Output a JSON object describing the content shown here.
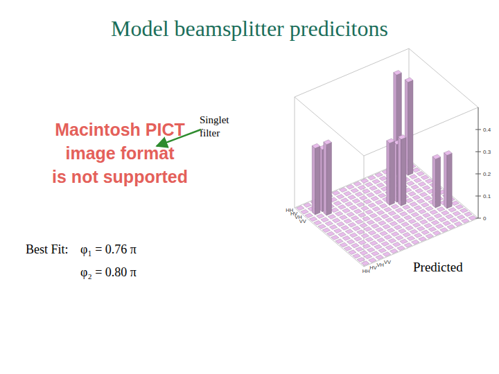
{
  "chart_data": {
    "type": "bar3d",
    "title": "Model beamsplitter predicitons",
    "placeholder": [
      "Macintosh PICT",
      "image format",
      "is not supported"
    ],
    "callout": [
      "Singlet",
      "filter"
    ],
    "fit_label": "Best Fit:",
    "fit": [
      "φ₁ = 0.76 π",
      "φ₂ = 0.80 π"
    ],
    "caption": "Predicted",
    "color": "#c9a3cc",
    "rows": [
      "HH",
      "HV",
      "VH",
      "VV",
      null,
      null,
      null,
      null,
      null,
      null,
      null,
      null,
      null,
      null,
      null,
      null
    ],
    "columns": [
      "HH",
      "HV",
      "VH",
      "VV",
      null,
      null,
      null,
      null,
      null,
      null,
      null,
      null,
      null,
      null,
      null,
      null
    ],
    "zlim": [
      0,
      0.5
    ],
    "zticks": [
      0,
      0.1,
      0.2,
      0.3,
      0.4
    ],
    "values": [
      [
        0,
        0,
        0,
        0,
        0,
        0,
        0,
        0,
        0,
        0,
        0,
        0,
        0,
        0,
        0,
        0
      ],
      [
        0,
        0,
        0,
        0,
        0,
        0,
        0,
        0,
        0,
        0,
        0,
        0,
        0,
        0.45,
        0,
        0
      ],
      [
        0,
        0.3,
        0.28,
        0,
        0,
        0,
        0,
        0,
        0,
        0,
        0,
        0,
        0,
        0,
        0.42,
        0
      ],
      [
        0,
        0,
        0.32,
        0,
        0,
        0,
        0,
        0,
        0,
        0,
        0,
        0,
        0,
        0,
        0,
        0
      ],
      [
        0,
        0,
        0,
        0,
        0,
        0,
        0,
        0,
        0,
        0,
        0,
        0,
        0,
        0,
        0,
        0
      ],
      [
        0,
        0,
        0,
        0,
        0,
        0,
        0,
        0,
        0,
        0,
        0,
        0,
        0,
        0,
        0,
        0
      ],
      [
        0,
        0,
        0,
        0,
        0,
        0,
        0,
        0,
        0,
        0.28,
        0.26,
        0,
        0,
        0,
        0,
        0
      ],
      [
        0,
        0,
        0,
        0,
        0,
        0,
        0,
        0,
        0,
        0,
        0.3,
        0,
        0,
        0,
        0,
        0
      ],
      [
        0,
        0,
        0,
        0,
        0,
        0,
        0,
        0,
        0,
        0,
        0,
        0,
        0,
        0,
        0,
        0
      ],
      [
        0,
        0,
        0,
        0,
        0,
        0,
        0,
        0,
        0,
        0,
        0,
        0,
        0,
        0,
        0,
        0
      ],
      [
        0,
        0,
        0,
        0,
        0,
        0,
        0,
        0,
        0,
        0,
        0,
        0,
        0,
        0.22,
        0,
        0
      ],
      [
        0,
        0,
        0,
        0,
        0,
        0,
        0,
        0,
        0,
        0,
        0,
        0,
        0,
        0,
        0.24,
        0
      ],
      [
        0,
        0,
        0,
        0,
        0,
        0,
        0,
        0,
        0,
        0,
        0,
        0,
        0,
        0,
        0,
        0
      ],
      [
        0,
        0,
        0,
        0,
        0,
        0,
        0,
        0,
        0,
        0,
        0,
        0,
        0,
        0,
        0,
        0
      ],
      [
        0,
        0,
        0,
        0,
        0,
        0,
        0,
        0,
        0,
        0,
        0,
        0,
        0,
        0,
        0,
        0
      ],
      [
        0,
        0,
        0,
        0,
        0,
        0,
        0,
        0,
        0,
        0,
        0,
        0,
        0,
        0,
        0,
        0
      ]
    ]
  }
}
